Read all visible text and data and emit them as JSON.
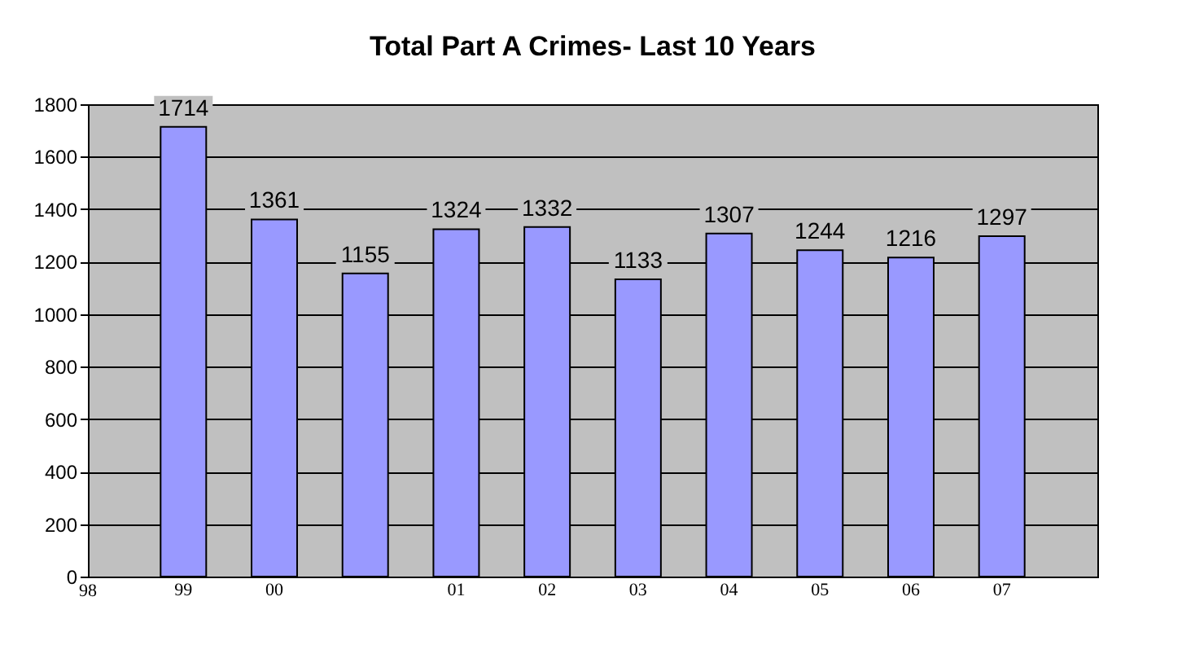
{
  "chart_data": {
    "type": "bar",
    "title": "Total Part A Crimes- Last 10 Years",
    "categories": [
      "99",
      "00",
      null,
      "01",
      "02",
      "03",
      "04",
      "05",
      "06",
      "07"
    ],
    "values": [
      1714,
      1361,
      1155,
      1324,
      1332,
      1133,
      1307,
      1244,
      1216,
      1297
    ],
    "color": "#9999ff",
    "ylim": [
      0,
      1800
    ],
    "yticks": [
      0,
      200,
      400,
      600,
      800,
      1000,
      1200,
      1400,
      1600,
      1800
    ],
    "grid": "y",
    "data_labels": true,
    "annotations": [
      "98"
    ]
  }
}
